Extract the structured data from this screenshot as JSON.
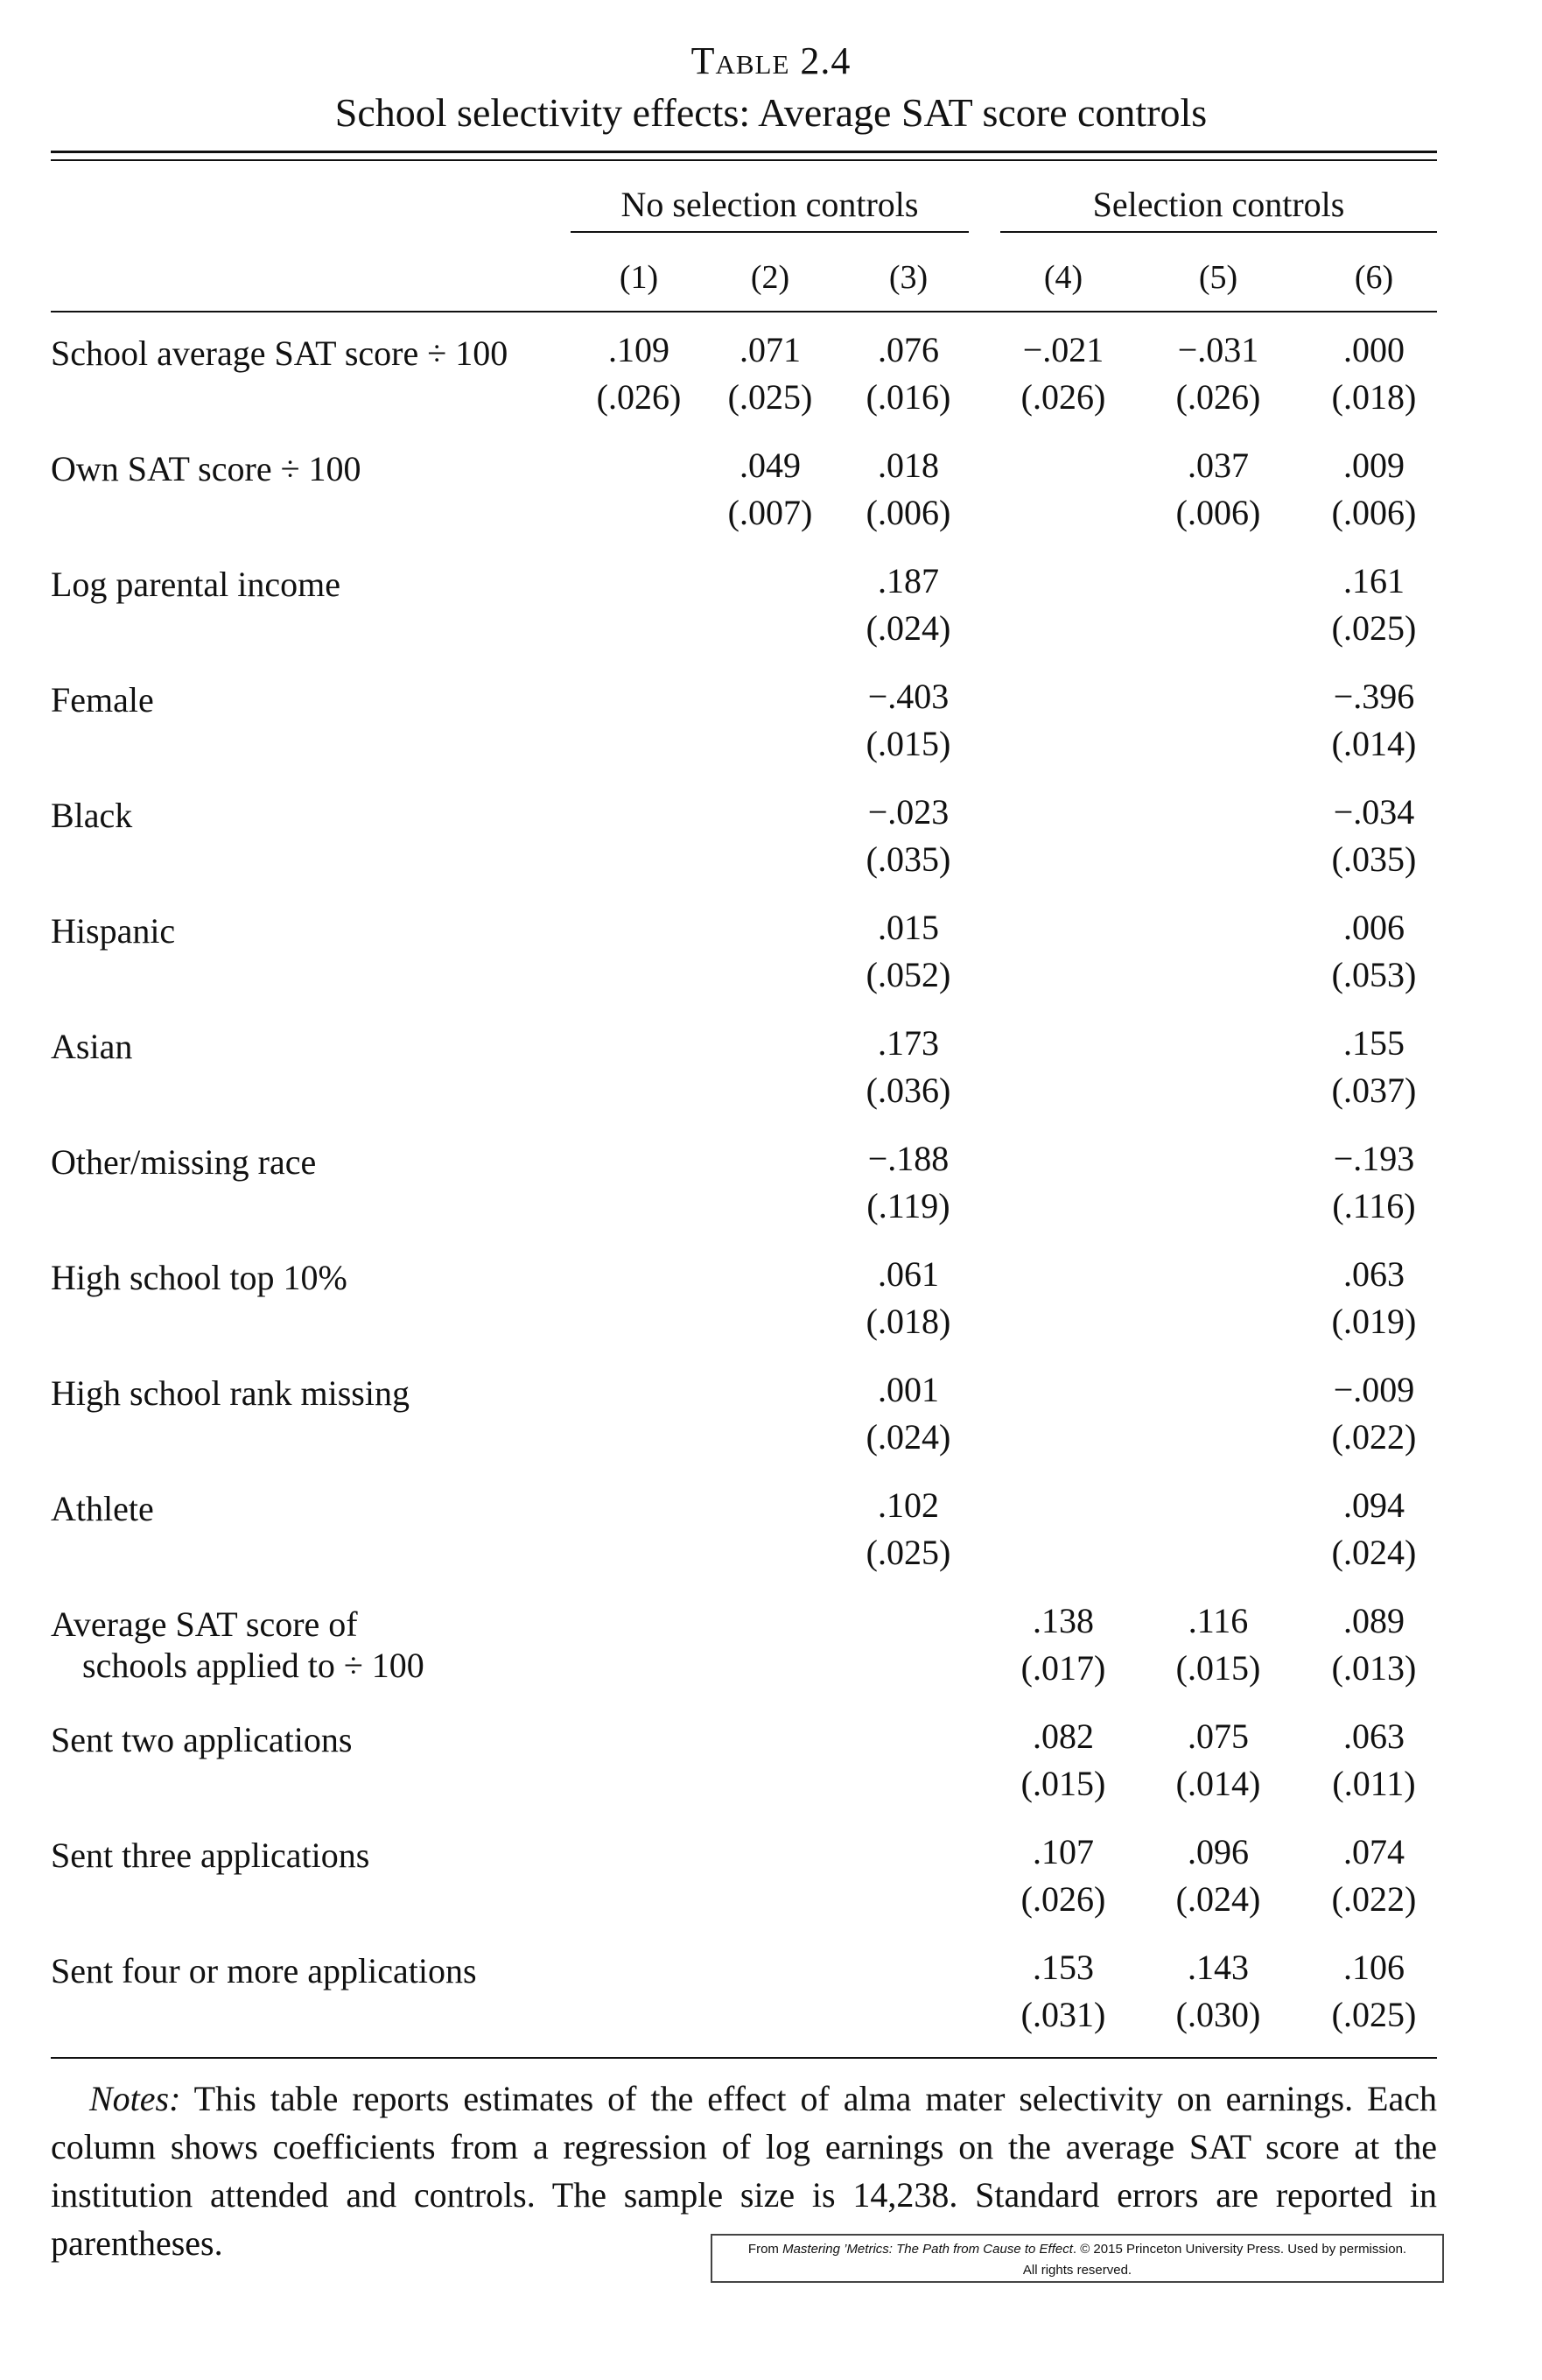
{
  "table": {
    "label": "Table 2.4",
    "title": "School selectivity effects: Average SAT score controls",
    "groups": [
      "No selection controls",
      "Selection controls"
    ],
    "columns": [
      "(1)",
      "(2)",
      "(3)",
      "(4)",
      "(5)",
      "(6)"
    ],
    "rows": [
      {
        "label": "School average SAT score ÷ 100",
        "coef": [
          ".109",
          ".071",
          ".076",
          "−.021",
          "−.031",
          ".000"
        ],
        "se": [
          "(.026)",
          "(.025)",
          "(.016)",
          "(.026)",
          "(.026)",
          "(.018)"
        ]
      },
      {
        "label": "Own SAT score ÷ 100",
        "coef": [
          "",
          ".049",
          ".018",
          "",
          ".037",
          ".009"
        ],
        "se": [
          "",
          "(.007)",
          "(.006)",
          "",
          "(.006)",
          "(.006)"
        ]
      },
      {
        "label": "Log parental income",
        "coef": [
          "",
          "",
          ".187",
          "",
          "",
          ".161"
        ],
        "se": [
          "",
          "",
          "(.024)",
          "",
          "",
          "(.025)"
        ]
      },
      {
        "label": "Female",
        "coef": [
          "",
          "",
          "−.403",
          "",
          "",
          "−.396"
        ],
        "se": [
          "",
          "",
          "(.015)",
          "",
          "",
          "(.014)"
        ]
      },
      {
        "label": "Black",
        "coef": [
          "",
          "",
          "−.023",
          "",
          "",
          "−.034"
        ],
        "se": [
          "",
          "",
          "(.035)",
          "",
          "",
          "(.035)"
        ]
      },
      {
        "label": "Hispanic",
        "coef": [
          "",
          "",
          ".015",
          "",
          "",
          ".006"
        ],
        "se": [
          "",
          "",
          "(.052)",
          "",
          "",
          "(.053)"
        ]
      },
      {
        "label": "Asian",
        "coef": [
          "",
          "",
          ".173",
          "",
          "",
          ".155"
        ],
        "se": [
          "",
          "",
          "(.036)",
          "",
          "",
          "(.037)"
        ]
      },
      {
        "label": "Other/missing race",
        "coef": [
          "",
          "",
          "−.188",
          "",
          "",
          "−.193"
        ],
        "se": [
          "",
          "",
          "(.119)",
          "",
          "",
          "(.116)"
        ]
      },
      {
        "label": "High school top 10%",
        "coef": [
          "",
          "",
          ".061",
          "",
          "",
          ".063"
        ],
        "se": [
          "",
          "",
          "(.018)",
          "",
          "",
          "(.019)"
        ]
      },
      {
        "label": "High school rank missing",
        "coef": [
          "",
          "",
          ".001",
          "",
          "",
          "−.009"
        ],
        "se": [
          "",
          "",
          "(.024)",
          "",
          "",
          "(.022)"
        ]
      },
      {
        "label": "Athlete",
        "coef": [
          "",
          "",
          ".102",
          "",
          "",
          ".094"
        ],
        "se": [
          "",
          "",
          "(.025)",
          "",
          "",
          "(.024)"
        ]
      },
      {
        "label": "Average SAT score of",
        "label2": "schools applied to ÷ 100",
        "coef": [
          "",
          "",
          "",
          ".138",
          ".116",
          ".089"
        ],
        "se": [
          "",
          "",
          "",
          "(.017)",
          "(.015)",
          "(.013)"
        ]
      },
      {
        "label": "Sent two applications",
        "coef": [
          "",
          "",
          "",
          ".082",
          ".075",
          ".063"
        ],
        "se": [
          "",
          "",
          "",
          "(.015)",
          "(.014)",
          "(.011)"
        ]
      },
      {
        "label": "Sent three applications",
        "coef": [
          "",
          "",
          "",
          ".107",
          ".096",
          ".074"
        ],
        "se": [
          "",
          "",
          "",
          "(.026)",
          "(.024)",
          "(.022)"
        ]
      },
      {
        "label": "Sent four or more applications",
        "coef": [
          "",
          "",
          "",
          ".153",
          ".143",
          ".106"
        ],
        "se": [
          "",
          "",
          "",
          "(.031)",
          "(.030)",
          "(.025)"
        ]
      }
    ]
  },
  "notes": {
    "label": "Notes:",
    "text": "This table reports estimates of the effect of alma mater selectivity on earnings. Each column shows coefficients from a regression of log earnings on the average SAT score at the institution attended and controls. The sample size is 14,238. Standard errors are reported in parentheses."
  },
  "credit": {
    "prefix": "From ",
    "book": "Mastering ’Metrics: The Path from Cause to Effect",
    "suffix": ". © 2015 Princeton University Press. Used by permission.",
    "line2": "All rights reserved."
  }
}
